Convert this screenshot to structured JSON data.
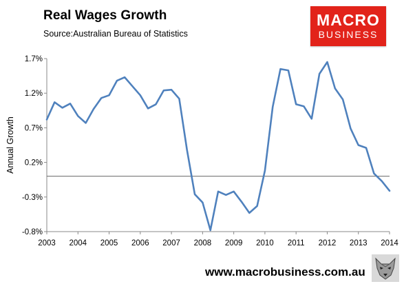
{
  "header": {
    "title": "Real Wages Growth",
    "subtitle": "Source:Australian Bureau of Statistics"
  },
  "logo": {
    "line1": "MACRO",
    "line2": "BUSINESS",
    "color": "#e2231a"
  },
  "footer": {
    "website": "www.macrobusiness.com.au",
    "wolf_icon": "wolf-head-icon"
  },
  "chart_data": {
    "type": "line",
    "title": "Real Wages Growth",
    "xlabel": "",
    "ylabel": "Annual Growth",
    "x_ticks": [
      "2003",
      "2004",
      "2005",
      "2006",
      "2007",
      "2008",
      "2009",
      "2010",
      "2011",
      "2012",
      "2013",
      "2014"
    ],
    "y_ticks": [
      "1.7%",
      "1.2%",
      "0.7%",
      "0.2%",
      "-0.3%",
      "-0.8%"
    ],
    "ylim": [
      -0.8,
      1.7
    ],
    "xlim": [
      2003,
      2014
    ],
    "grid": false,
    "series": [
      {
        "color": "#4f81bd",
        "x": [
          2003.0,
          2003.25,
          2003.5,
          2003.75,
          2004.0,
          2004.25,
          2004.5,
          2004.75,
          2005.0,
          2005.25,
          2005.5,
          2005.75,
          2006.0,
          2006.25,
          2006.5,
          2006.75,
          2007.0,
          2007.25,
          2007.5,
          2007.75,
          2008.0,
          2008.25,
          2008.5,
          2008.75,
          2009.0,
          2009.25,
          2009.5,
          2009.75,
          2010.0,
          2010.25,
          2010.5,
          2010.75,
          2011.0,
          2011.25,
          2011.5,
          2011.75,
          2012.0,
          2012.25,
          2012.5,
          2012.75,
          2013.0,
          2013.25,
          2013.5,
          2013.75,
          2014.0
        ],
        "values": [
          0.82,
          1.07,
          0.99,
          1.05,
          0.87,
          0.77,
          0.97,
          1.13,
          1.17,
          1.38,
          1.43,
          1.3,
          1.17,
          0.98,
          1.04,
          1.24,
          1.25,
          1.12,
          0.38,
          -0.26,
          -0.38,
          -0.78,
          -0.22,
          -0.27,
          -0.22,
          -0.37,
          -0.53,
          -0.43,
          0.08,
          1.0,
          1.55,
          1.53,
          1.04,
          1.01,
          0.83,
          1.48,
          1.65,
          1.27,
          1.11,
          0.69,
          0.45,
          0.41,
          0.04,
          -0.07,
          -0.21
        ]
      }
    ]
  }
}
